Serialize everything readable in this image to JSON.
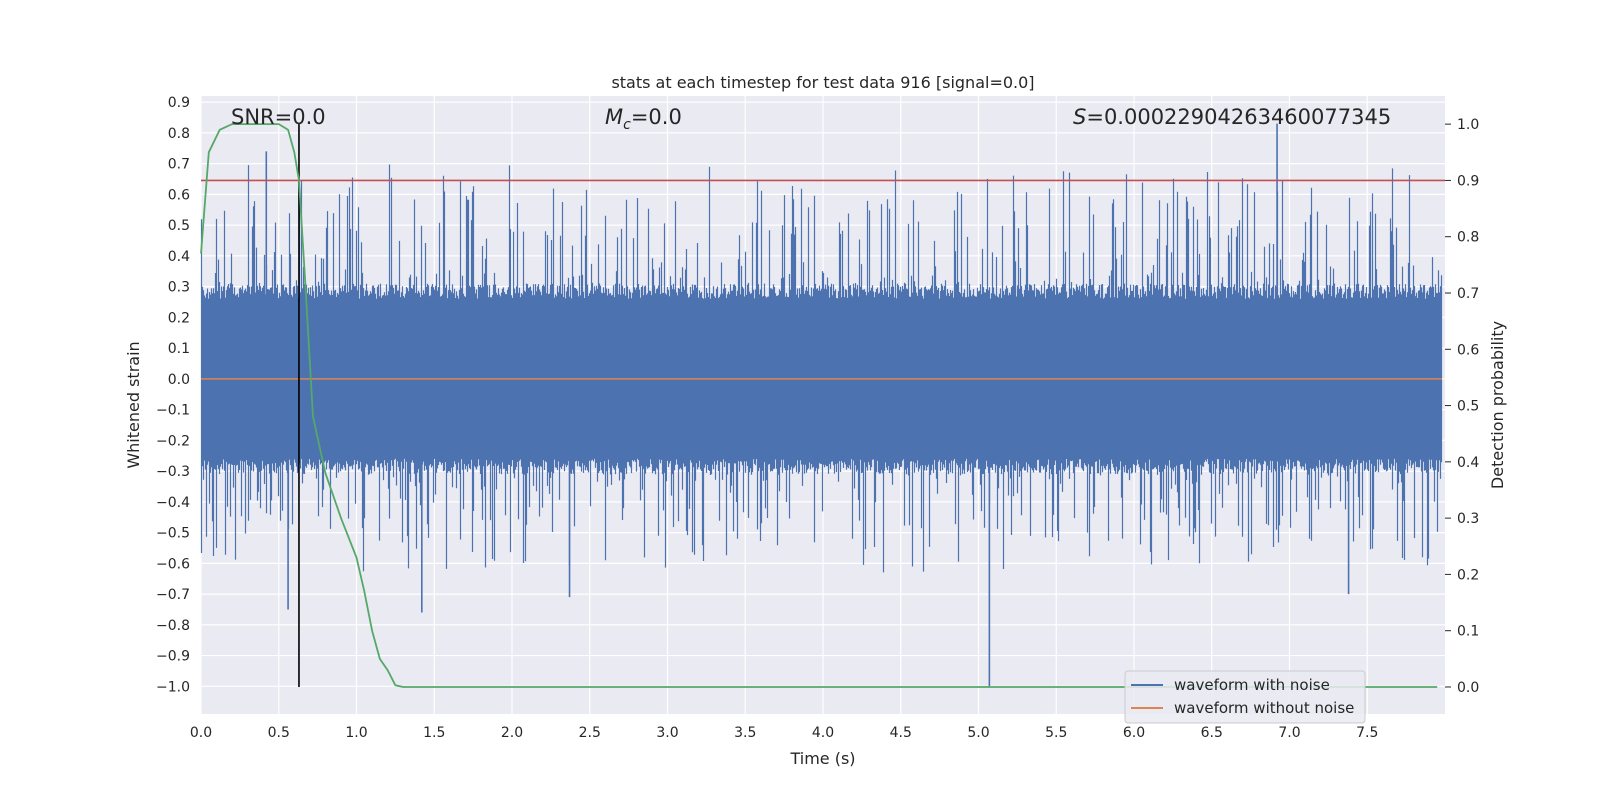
{
  "chart_data": {
    "type": "line",
    "title": "stats at each timestep for test data 916 [signal=0.0]",
    "xlabel": "Time (s)",
    "ylabel": "Whitened strain",
    "y2label": "Detection probability",
    "xlim": [
      0.0,
      8.0
    ],
    "ylim": [
      -1.09,
      0.92
    ],
    "y2lim": [
      -0.048,
      1.05
    ],
    "x_ticks": [
      0.0,
      0.5,
      1.0,
      1.5,
      2.0,
      2.5,
      3.0,
      3.5,
      4.0,
      4.5,
      5.0,
      5.5,
      6.0,
      6.5,
      7.0,
      7.5
    ],
    "x_tick_labels": [
      "0.0",
      "0.5",
      "1.0",
      "1.5",
      "2.0",
      "2.5",
      "3.0",
      "3.5",
      "4.0",
      "4.5",
      "5.0",
      "5.5",
      "6.0",
      "6.5",
      "7.0",
      "7.5"
    ],
    "y_ticks": [
      0.9,
      0.8,
      0.7,
      0.6,
      0.5,
      0.4,
      0.3,
      0.2,
      0.1,
      0.0,
      -0.1,
      -0.2,
      -0.3,
      -0.4,
      -0.5,
      -0.6,
      -0.7,
      -0.8,
      -0.9,
      -1.0
    ],
    "y_tick_labels": [
      "0.9",
      "0.8",
      "0.7",
      "0.6",
      "0.5",
      "0.4",
      "0.3",
      "0.2",
      "0.1",
      "0.0",
      "−0.1",
      "−0.2",
      "−0.3",
      "−0.4",
      "−0.5",
      "−0.6",
      "−0.7",
      "−0.8",
      "−0.9",
      "−1.0"
    ],
    "y2_ticks": [
      1.0,
      0.9,
      0.8,
      0.7,
      0.6,
      0.5,
      0.4,
      0.3,
      0.2,
      0.1,
      0.0
    ],
    "y2_tick_labels": [
      "1.0",
      "0.9",
      "0.8",
      "0.7",
      "0.6",
      "0.5",
      "0.4",
      "0.3",
      "0.2",
      "0.1",
      "0.0"
    ],
    "annotations": {
      "snr": "SNR=0.0",
      "mc_symbol": "M",
      "mc_subscript": "c",
      "mc_value": "=0.0",
      "s_symbol": "S",
      "s_value": "=0.00022904263460077345"
    },
    "series": [
      {
        "name": "waveform with noise",
        "axis": "left",
        "color": "#4c72b0",
        "notable_peaks": [
          {
            "x": 0.42,
            "y": 0.74
          },
          {
            "x": 0.56,
            "y": -0.75
          },
          {
            "x": 1.42,
            "y": -0.76
          },
          {
            "x": 2.37,
            "y": -0.71
          },
          {
            "x": 5.07,
            "y": -1.0
          },
          {
            "x": 6.92,
            "y": 0.83
          },
          {
            "x": 7.38,
            "y": -0.7
          }
        ]
      },
      {
        "name": "waveform without noise",
        "axis": "left",
        "color": "#dd8452",
        "x": [
          0.0,
          7.98
        ],
        "y": [
          0.0,
          0.0
        ]
      },
      {
        "axis": "right",
        "color": "#55a868",
        "x": [
          0.0,
          0.05,
          0.12,
          0.2,
          0.3,
          0.4,
          0.5,
          0.56,
          0.6,
          0.63,
          0.67,
          0.72,
          0.8,
          0.9,
          1.0,
          1.05,
          1.1,
          1.15,
          1.2,
          1.25,
          1.3,
          1.35,
          1.4,
          2.0,
          3.0,
          4.0,
          5.0,
          6.0,
          7.0,
          7.95
        ],
        "y": [
          0.77,
          0.95,
          0.99,
          1.0,
          1.0,
          1.0,
          1.0,
          0.99,
          0.95,
          0.9,
          0.72,
          0.48,
          0.38,
          0.3,
          0.23,
          0.17,
          0.1,
          0.05,
          0.03,
          0.003,
          0.0,
          0.0,
          0.0,
          0.0,
          0.0,
          0.0,
          0.0,
          0.0,
          0.0,
          0.0
        ]
      }
    ],
    "threshold": {
      "axis": "right",
      "y": 0.9,
      "color": "#c44e52"
    },
    "marker_line": {
      "x": 0.63,
      "y2_from": 0.0,
      "y2_to": 1.0,
      "color": "#000000"
    },
    "legend": {
      "placement": "lower-right",
      "entries": [
        "waveform with noise",
        "waveform without noise"
      ]
    },
    "grid": true,
    "background": "#eaeaf2"
  }
}
